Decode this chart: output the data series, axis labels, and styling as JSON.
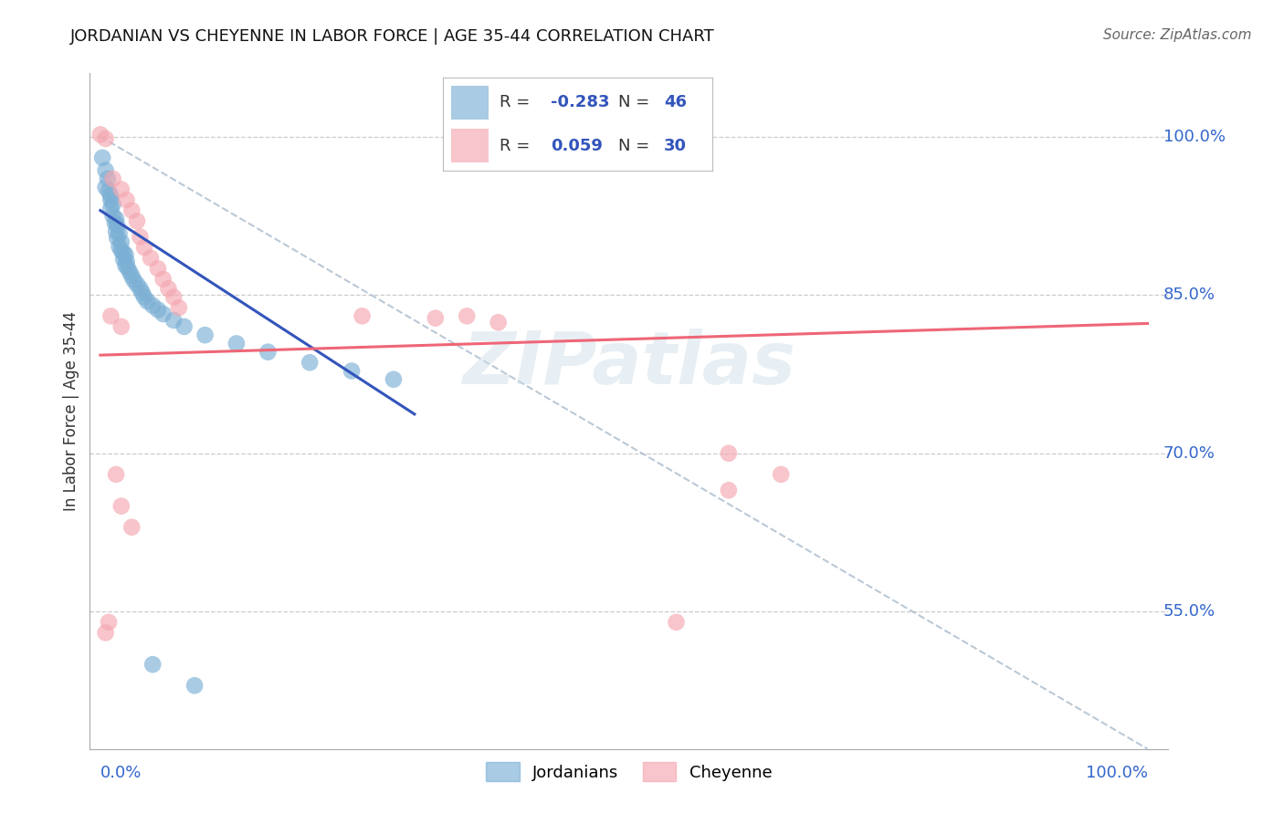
{
  "title": "JORDANIAN VS CHEYENNE IN LABOR FORCE | AGE 35-44 CORRELATION CHART",
  "source": "Source: ZipAtlas.com",
  "ylabel": "In Labor Force | Age 35-44",
  "xlim": [
    0.0,
    1.0
  ],
  "ylim": [
    0.42,
    1.06
  ],
  "ytick_vals": [
    0.55,
    0.7,
    0.85,
    1.0
  ],
  "ytick_labels": [
    "55.0%",
    "70.0%",
    "85.0%",
    "100.0%"
  ],
  "legend_blue_R": "-0.283",
  "legend_blue_N": "46",
  "legend_pink_R": "0.059",
  "legend_pink_N": "30",
  "blue_color": "#7BAFD4",
  "pink_color": "#F4A7B0",
  "line_blue": "#3355BB",
  "line_pink": "#EE6677",
  "line_gray_dash": "#AABBCC",
  "jordanian_points": [
    [
      0.002,
      0.98
    ],
    [
      0.005,
      0.968
    ],
    [
      0.007,
      0.96
    ],
    [
      0.005,
      0.952
    ],
    [
      0.008,
      0.948
    ],
    [
      0.01,
      0.944
    ],
    [
      0.01,
      0.94
    ],
    [
      0.012,
      0.936
    ],
    [
      0.01,
      0.932
    ],
    [
      0.012,
      0.925
    ],
    [
      0.015,
      0.922
    ],
    [
      0.014,
      0.918
    ],
    [
      0.016,
      0.916
    ],
    [
      0.015,
      0.91
    ],
    [
      0.018,
      0.908
    ],
    [
      0.016,
      0.904
    ],
    [
      0.02,
      0.9
    ],
    [
      0.018,
      0.896
    ],
    [
      0.02,
      0.892
    ],
    [
      0.022,
      0.89
    ],
    [
      0.024,
      0.888
    ],
    [
      0.022,
      0.884
    ],
    [
      0.025,
      0.882
    ],
    [
      0.024,
      0.878
    ],
    [
      0.026,
      0.876
    ],
    [
      0.028,
      0.872
    ],
    [
      0.03,
      0.868
    ],
    [
      0.032,
      0.864
    ],
    [
      0.035,
      0.86
    ],
    [
      0.038,
      0.856
    ],
    [
      0.04,
      0.852
    ],
    [
      0.042,
      0.848
    ],
    [
      0.045,
      0.844
    ],
    [
      0.05,
      0.84
    ],
    [
      0.055,
      0.836
    ],
    [
      0.06,
      0.832
    ],
    [
      0.07,
      0.826
    ],
    [
      0.08,
      0.82
    ],
    [
      0.1,
      0.812
    ],
    [
      0.13,
      0.804
    ],
    [
      0.16,
      0.796
    ],
    [
      0.2,
      0.786
    ],
    [
      0.24,
      0.778
    ],
    [
      0.28,
      0.77
    ],
    [
      0.05,
      0.5
    ],
    [
      0.09,
      0.48
    ]
  ],
  "cheyenne_points": [
    [
      0.0,
      1.002
    ],
    [
      0.005,
      0.998
    ],
    [
      0.012,
      0.96
    ],
    [
      0.02,
      0.95
    ],
    [
      0.025,
      0.94
    ],
    [
      0.03,
      0.93
    ],
    [
      0.035,
      0.92
    ],
    [
      0.038,
      0.905
    ],
    [
      0.042,
      0.895
    ],
    [
      0.048,
      0.885
    ],
    [
      0.055,
      0.875
    ],
    [
      0.06,
      0.865
    ],
    [
      0.065,
      0.856
    ],
    [
      0.07,
      0.848
    ],
    [
      0.075,
      0.838
    ],
    [
      0.01,
      0.83
    ],
    [
      0.02,
      0.82
    ],
    [
      0.25,
      0.83
    ],
    [
      0.32,
      0.828
    ],
    [
      0.35,
      0.83
    ],
    [
      0.38,
      0.824
    ],
    [
      0.6,
      0.7
    ],
    [
      0.65,
      0.68
    ],
    [
      0.6,
      0.665
    ],
    [
      0.55,
      0.54
    ],
    [
      0.015,
      0.68
    ],
    [
      0.02,
      0.65
    ],
    [
      0.03,
      0.63
    ],
    [
      0.008,
      0.54
    ],
    [
      0.005,
      0.53
    ]
  ]
}
